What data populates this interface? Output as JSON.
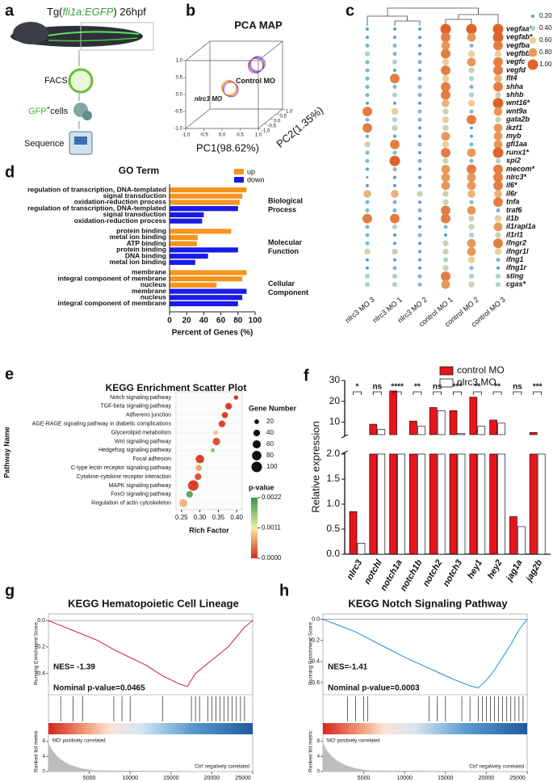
{
  "schematic": {
    "label": "a",
    "title": [
      "Tg(",
      "fli1a:EGFP",
      ") 26hpf"
    ],
    "steps": [
      "FACS",
      [
        "GFP",
        "+",
        "cells"
      ],
      "Sequence"
    ]
  },
  "chart_data": [
    {
      "type": "pca3d",
      "label": "b",
      "title": "PCA MAP",
      "xlabel": "PC1(98.62%)",
      "ylabel": "PC2(1.35%)",
      "xlim": [
        -1,
        1
      ],
      "ylim": [
        -1,
        1
      ],
      "zlim": [
        -1,
        1
      ],
      "xticks": [
        {
          "value": -1,
          "label": "-1.0"
        },
        {
          "value": -0.5,
          "label": "-0.5"
        },
        {
          "value": 0,
          "label": "0.0"
        },
        {
          "value": 0.5,
          "label": "0.5"
        },
        {
          "value": 1,
          "label": "1.0"
        }
      ],
      "yticks": [
        {
          "value": -1,
          "label": "-1.0"
        },
        {
          "value": -0.5,
          "label": "-0.5"
        },
        {
          "value": 0,
          "label": "0.0"
        },
        {
          "value": 0.5,
          "label": "0.5"
        },
        {
          "value": 1,
          "label": "1.0"
        }
      ],
      "zticks": [
        {
          "value": -1,
          "label": "-1.0"
        },
        {
          "value": -0.5,
          "label": "-0.5"
        },
        {
          "value": 0,
          "label": "0.0"
        },
        {
          "value": 0.5,
          "label": "0.5"
        },
        {
          "value": 1,
          "label": "1.0"
        }
      ],
      "series": [
        {
          "name": "nlrc3 MO",
          "colors": [
            "#e0572a",
            "#e8c21a",
            "#8a4bc8"
          ],
          "x": [
            -0.05,
            -0.08,
            -0.02
          ],
          "y": [
            -0.2,
            -0.2,
            -0.2
          ],
          "z": [
            -0.05,
            -0.02,
            -0.08
          ]
        },
        {
          "name": "Control MO",
          "colors": [
            "#3535e0",
            "#7a5ad8",
            "#d04a5a"
          ],
          "x": [
            0.42,
            0.45,
            0.39
          ],
          "y": [
            0.6,
            0.6,
            0.6
          ],
          "z": [
            0.42,
            0.45,
            0.39
          ]
        }
      ]
    },
    {
      "type": "dotplot",
      "label": "c",
      "columns": [
        "nlrc3 MO 3",
        "nlrc3 MO 1",
        "nlrc3 MO 2",
        "control MO 1",
        "control MO 2",
        "control MO 3"
      ],
      "rows": [
        "vegfaa*",
        "vegfab*",
        "vegfba",
        "vegfbb",
        "vegfc",
        "vegfd",
        "flt4",
        "shha",
        "shhb",
        "wnt16*",
        "wnt9a",
        "gata2b",
        "ikzf1",
        "myb",
        "gfi1aa",
        "runx1*",
        "spi2",
        "mecom*",
        "nlrc3*",
        "il6*",
        "il6r",
        "tnfa",
        "traf6",
        "il1b",
        "il1rapl1a",
        "il1rl1",
        "ifngr2",
        "ifngr1l",
        "ifng1",
        "ifng1r",
        "sting",
        "cgas*"
      ],
      "values": [
        [
          0.2,
          0.2,
          0.2,
          1,
          1,
          1
        ],
        [
          0.2,
          0.2,
          0.2,
          0.9,
          0.8,
          1
        ],
        [
          0.3,
          0.3,
          0.2,
          0.8,
          0.3,
          0.9
        ],
        [
          0.4,
          0.3,
          0.2,
          0.9,
          0.6,
          0.6
        ],
        [
          0.3,
          0.4,
          0.3,
          0.6,
          0.8,
          0.9
        ],
        [
          0.3,
          0.2,
          0.2,
          0.9,
          0.5,
          0.9
        ],
        [
          0.3,
          0.9,
          0.3,
          0.6,
          0.4,
          0.7
        ],
        [
          0.3,
          0.3,
          0.3,
          0.9,
          0.3,
          0.9
        ],
        [
          0.3,
          0.4,
          0.3,
          0.9,
          0.4,
          0.5
        ],
        [
          0.2,
          0.2,
          0.2,
          0.7,
          0.6,
          1
        ],
        [
          0.9,
          0.6,
          0.3,
          0.5,
          0.3,
          0.8
        ],
        [
          0.3,
          0.4,
          0.3,
          0.6,
          0.9,
          0.5
        ],
        [
          0.9,
          0.5,
          0.2,
          0.5,
          0.2,
          0.8
        ],
        [
          0.2,
          0.2,
          0.2,
          0.8,
          0.2,
          0.8
        ],
        [
          0.5,
          0.9,
          0.3,
          0.6,
          0.3,
          0.8
        ],
        [
          0.3,
          0.3,
          0.2,
          0.9,
          0.8,
          1
        ],
        [
          0.3,
          1,
          0.3,
          0.5,
          0.3,
          0.4
        ],
        [
          0.2,
          0.3,
          0.2,
          0.8,
          0.9,
          0.9
        ],
        [
          0.1,
          0.2,
          0.2,
          0.8,
          0.8,
          0.9
        ],
        [
          0.2,
          0.2,
          0.2,
          0.8,
          0.8,
          0.9
        ],
        [
          0.7,
          0.7,
          0.5,
          0.5,
          0.7,
          0.7
        ],
        [
          0.3,
          0.3,
          0.2,
          0.5,
          0.3,
          0.9
        ],
        [
          0.3,
          0.3,
          0.3,
          0.9,
          0.8,
          0.3
        ],
        [
          0.9,
          0.9,
          0.2,
          0.9,
          0.5,
          0.6
        ],
        [
          0.3,
          0.4,
          0.2,
          0.3,
          0.5,
          0.8
        ],
        [
          0.3,
          0.2,
          0.3,
          0.2,
          0.4,
          0.5
        ],
        [
          0.3,
          0.2,
          0.2,
          0.5,
          0.8,
          0.9
        ],
        [
          0.5,
          0.5,
          0.2,
          0.5,
          0.8,
          0.6
        ],
        [
          0.2,
          0.2,
          0.2,
          0.4,
          0.6,
          0.3
        ],
        [
          0.2,
          0.3,
          0.2,
          0.5,
          0.3,
          0.2
        ],
        [
          0.4,
          0.4,
          0.3,
          0.9,
          0.4,
          0.4
        ],
        [
          0.4,
          0.4,
          0.3,
          0.8,
          0.5,
          0.4
        ]
      ],
      "legend": [
        {
          "value": 0.2,
          "label": "0.20"
        },
        {
          "value": 0.4,
          "label": "0.40"
        },
        {
          "value": 0.6,
          "label": "0.60"
        },
        {
          "value": 0.8,
          "label": "0.80"
        },
        {
          "value": 1,
          "label": "1.00"
        }
      ],
      "colors": [
        "#4fa3cc",
        "#a8d5cf",
        "#e9cf98",
        "#e8975a",
        "#e0622a"
      ]
    },
    {
      "type": "hbar",
      "label": "d",
      "title": "GO Term",
      "xlabel": "Percent of Genes (%)",
      "xlim": [
        0,
        100
      ],
      "xticks": [
        0,
        20,
        40,
        60,
        80,
        100
      ],
      "series": [
        {
          "name": "up",
          "color": "#f7941d"
        },
        {
          "name": "down",
          "color": "#1a1ae6"
        }
      ],
      "groups": [
        {
          "name": [
            "Biological",
            "Process"
          ],
          "categories": [
            "regulation of transcription, DNA-templated",
            "signal transduction",
            "oxidation-reduction process",
            "regulation of transcription, DNA-templated",
            "signal transduction",
            "oxidation-reduction process"
          ],
          "values": [
            90,
            85,
            82,
            80,
            40,
            38
          ],
          "series": [
            "up",
            "up",
            "up",
            "down",
            "down",
            "down"
          ]
        },
        {
          "name": [
            "Molecular",
            "Function"
          ],
          "categories": [
            "protein binding",
            "metal ion binding",
            "ATP binding",
            "protein binding",
            "DNA binding",
            "metal ion binding"
          ],
          "values": [
            72,
            33,
            32,
            80,
            45,
            30
          ],
          "series": [
            "up",
            "up",
            "up",
            "down",
            "down",
            "down"
          ]
        },
        {
          "name": [
            "Cellular",
            "Component"
          ],
          "categories": [
            "membrane",
            "integral component of membrane",
            "nucleus",
            "membrane",
            "nucleus",
            "integral component of membrane"
          ],
          "values": [
            90,
            85,
            55,
            90,
            85,
            80
          ],
          "series": [
            "up",
            "up",
            "up",
            "down",
            "down",
            "down"
          ]
        }
      ]
    },
    {
      "type": "bubble",
      "label": "e",
      "title": "KEGG Enrichment Scatter Plot",
      "xlabel": "Rich Factor",
      "ylabel": "Pathway Name",
      "categories": [
        "Notch signaling pathway",
        "TGF-beta signaling pathway",
        "Adherens junction",
        "AGE-RAGE signaling pathway in diabetic complications",
        "Glycerolipid metabolism",
        "Wnt signaling pathway",
        "Hedgehog signaling pathway",
        "Focal adhesion",
        "C-type lectin receptor signaling pathway",
        "Cytokine-cytokine receptor interaction",
        "MAPK signaling pathway",
        "FoxO signaling pathway",
        "Regulation of actin cytoskeleton"
      ],
      "x": [
        0.398,
        0.378,
        0.368,
        0.36,
        0.343,
        0.345,
        0.335,
        0.3,
        0.297,
        0.295,
        0.282,
        0.272,
        0.255
      ],
      "size": [
        18,
        40,
        35,
        40,
        22,
        50,
        15,
        65,
        35,
        40,
        100,
        40,
        60
      ],
      "pvalue": [
        5e-05,
        0.0001,
        0.0001,
        0.0001,
        0.0009,
        0.0002,
        0.0017,
        0.0001,
        0.0007,
        0.0002,
        0.0001,
        0.002,
        0.0008
      ],
      "xlim": [
        0.235,
        0.415
      ],
      "xticks": [
        0.25,
        {
          "value": 0.3,
          "label": "0.30"
        },
        0.35,
        {
          "value": 0.4,
          "label": "0.40"
        }
      ],
      "size_title": "Gene Number",
      "size_legend": [
        20,
        40,
        60,
        80,
        100
      ],
      "color_title": "p-value",
      "color_ticks": [
        0.0022,
        0.0011,
        {
          "value": 0,
          "label": "0.0000"
        }
      ],
      "colorscale": [
        "#3a9a4a",
        "#f4eba0",
        "#d7301f"
      ]
    },
    {
      "type": "brokenbar",
      "label": "f",
      "ylabel": "Relative expression",
      "categories": [
        "nlrc3",
        "notchl",
        "notch1a",
        "notch1b",
        "notch2",
        "notch3",
        "hey1",
        "hey2",
        "jag1a",
        "jag2b"
      ],
      "series": [
        {
          "name": "control MO",
          "color": "#e8141a",
          "values": [
            0.85,
            9,
            25,
            10.5,
            17,
            15.5,
            22,
            11,
            0.75,
            5
          ]
        },
        {
          "name": "nlrc3 MO",
          "color": "#ffffff",
          "values": [
            0.22,
            6.5,
            2.5,
            8,
            15.5,
            4.5,
            8,
            9.5,
            0.55,
            3
          ]
        }
      ],
      "significance": [
        "*",
        "ns",
        "****",
        "**",
        "ns",
        "***",
        "**",
        "**",
        "ns",
        "***"
      ],
      "ylim_upper": [
        4,
        30
      ],
      "yticks_upper": [
        10,
        20,
        30
      ],
      "ylim_lower": [
        0,
        2
      ],
      "yticks_lower": [
        {
          "value": 0,
          "label": "0.0"
        },
        {
          "value": 0.5,
          "label": "0.5"
        },
        {
          "value": 1,
          "label": "1.0"
        },
        {
          "value": 1.5,
          "label": "1.5"
        },
        {
          "value": 2,
          "label": "2.0"
        }
      ]
    },
    {
      "type": "gsea",
      "label": "g",
      "title": "KEGG Hematopoietic Cell Lineage",
      "nes": "NES= -1.39",
      "pvalue_text": "Nominal p-value=0.0465",
      "ylabel": "Running Enrichment Score",
      "metric_label": "Ranked list metric",
      "pos_label": "'MO' positively correlated",
      "neg_label": "'Ctrl' negatively correlated",
      "line_color": "#c8174a",
      "x": [
        0,
        2000,
        4000,
        6000,
        8000,
        10000,
        12000,
        14000,
        16000,
        17000,
        18000,
        20000,
        22000,
        24000,
        25000
      ],
      "values": [
        0,
        -0.05,
        -0.1,
        -0.15,
        -0.22,
        -0.28,
        -0.34,
        -0.42,
        -0.48,
        -0.5,
        -0.4,
        -0.3,
        -0.2,
        -0.05,
        0
      ],
      "hits": [
        1500,
        3000,
        4200,
        8000,
        9000,
        10000,
        14000,
        17500,
        18000,
        18500,
        19500,
        20000,
        20500,
        21000,
        21500,
        22000,
        22500,
        23000,
        23500,
        24000
      ],
      "xlim": [
        0,
        25000
      ],
      "xticks": [
        5000,
        10000,
        15000,
        20000,
        25000
      ],
      "ylim": [
        -0.55,
        0.05
      ],
      "yticks": [
        {
          "value": 0,
          "label": "0.0"
        },
        {
          "value": -0.2,
          "label": "-0.2"
        },
        {
          "value": -0.4,
          "label": "-0.4"
        }
      ],
      "metric_ylim": [
        0,
        9
      ],
      "metric_yticks": [
        0,
        4,
        8
      ]
    },
    {
      "type": "gsea",
      "label": "h",
      "title": "KEGG Notch Signaling Pathway",
      "nes": "NES=-1.41",
      "pvalue_text": "Nominal p-value=0.0003",
      "ylabel": "Running Enrichment Score",
      "metric_label": "Ranked list metric",
      "pos_label": "'MO' positively correlated",
      "neg_label": "'Ctrl' negatively correlated",
      "line_color": "#1f8fd8",
      "x": [
        0,
        2000,
        4000,
        6000,
        8000,
        10000,
        12000,
        14000,
        16000,
        18000,
        19000,
        20000,
        21000,
        22000,
        23000,
        24000,
        25000
      ],
      "values": [
        0,
        -0.06,
        -0.12,
        -0.2,
        -0.28,
        -0.36,
        -0.43,
        -0.5,
        -0.57,
        -0.63,
        -0.65,
        -0.58,
        -0.48,
        -0.36,
        -0.24,
        -0.1,
        0
      ],
      "hits": [
        3000,
        4000,
        5000,
        5500,
        13000,
        14000,
        15000,
        17000,
        18000,
        19000,
        19500,
        20000,
        20500,
        21000,
        21500,
        22000,
        22500,
        23000,
        23500,
        24000,
        24500
      ],
      "xlim": [
        0,
        25000
      ],
      "xticks": [
        5000,
        10000,
        15000,
        20000,
        25000
      ],
      "ylim": [
        -0.7,
        0.05
      ],
      "yticks": [
        {
          "value": 0,
          "label": "0.0"
        },
        {
          "value": -0.2,
          "label": "-0.2"
        },
        {
          "value": -0.4,
          "label": "-0.4"
        },
        {
          "value": -0.6,
          "label": "-0.6"
        }
      ],
      "metric_ylim": [
        0,
        9
      ],
      "metric_yticks": [
        0,
        4,
        8
      ]
    }
  ]
}
